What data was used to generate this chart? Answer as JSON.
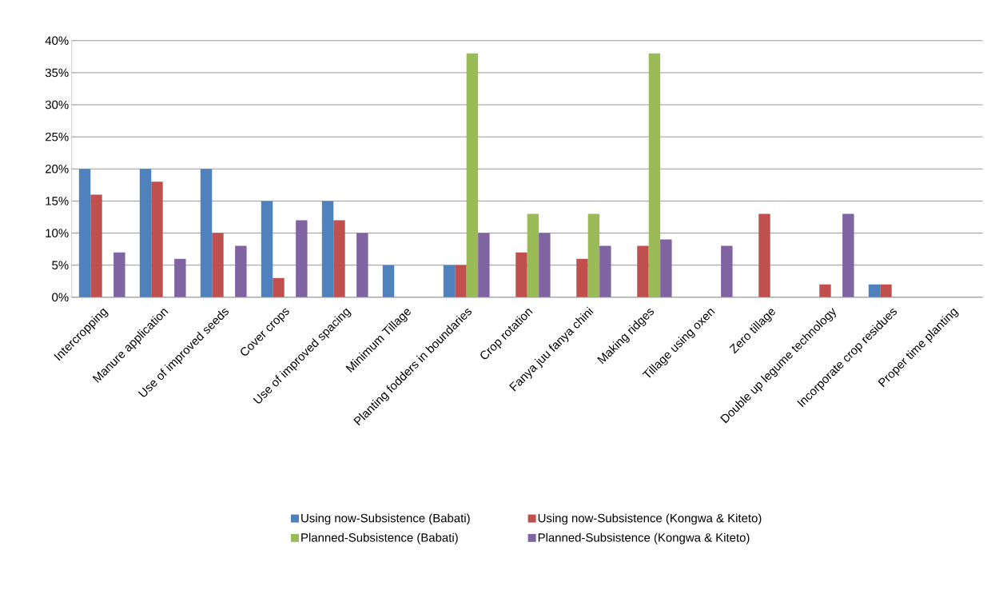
{
  "chart_data": {
    "type": "bar",
    "categories": [
      "Intercropping",
      "Manure application",
      "Use of improved seeds",
      "Cover crops",
      "Use of improved spacing",
      "Minimum Tillage",
      "Planting fodders in boundaries",
      "Crop rotation",
      "Fanya juu fanya chini",
      "Making ridges",
      "Tillage using oxen",
      "Zero tillage",
      "Double up legume technology",
      "Incorporate crop residues",
      "Proper time planting"
    ],
    "series": [
      {
        "name": "Using now-Subsistence (Babati)",
        "color": "#4f81bd",
        "values": [
          20,
          20,
          20,
          15,
          15,
          5,
          5,
          0,
          0,
          0,
          0,
          0,
          0,
          2,
          0
        ]
      },
      {
        "name": "Using now-Subsistence (Kongwa & Kiteto)",
        "color": "#c0504d",
        "values": [
          16,
          18,
          10,
          3,
          12,
          0,
          5,
          7,
          6,
          8,
          0,
          13,
          2,
          2,
          0
        ]
      },
      {
        "name": "Planned-Subsistence (Babati)",
        "color": "#9bbb59",
        "values": [
          0,
          0,
          0,
          0,
          0,
          0,
          38,
          13,
          13,
          38,
          0,
          0,
          0,
          0,
          0
        ]
      },
      {
        "name": "Planned-Subsistence (Kongwa & Kiteto)",
        "color": "#8064a2",
        "values": [
          7,
          6,
          8,
          12,
          10,
          0,
          10,
          10,
          8,
          9,
          8,
          0,
          13,
          0,
          0
        ]
      }
    ],
    "ylim": [
      0,
      40
    ],
    "yticks": [
      {
        "value": 0,
        "label": "0%"
      },
      {
        "value": 5,
        "label": "5%"
      },
      {
        "value": 10,
        "label": "10%"
      },
      {
        "value": 15,
        "label": "15%"
      },
      {
        "value": 20,
        "label": "20%"
      },
      {
        "value": 25,
        "label": "25%"
      },
      {
        "value": 30,
        "label": "30%"
      },
      {
        "value": 35,
        "label": "35%"
      },
      {
        "value": 40,
        "label": "40%"
      }
    ],
    "grid": "y",
    "legend": "bottom"
  }
}
